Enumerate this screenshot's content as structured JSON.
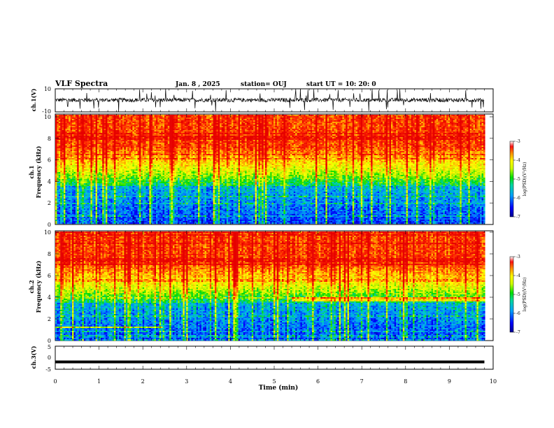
{
  "header": {
    "title": "VLF Spectra",
    "date": "Jan. 8 , 2025",
    "station": "station= OUJ",
    "start": "start UT = 10: 20: 0"
  },
  "chart_data": [
    {
      "type": "line",
      "name": "ch1-waveform",
      "ylabel": "ch.1(V)",
      "ylim": [
        -10,
        10
      ],
      "yticks": [
        "10",
        "-10"
      ],
      "xlim": [
        0,
        10
      ]
    },
    {
      "type": "heatmap",
      "name": "ch1-spectrogram",
      "ylabel": "ch.1\nFrequency (kHz)",
      "ylabel_lines": [
        "ch.1",
        "Frequency (kHz)"
      ],
      "ylim": [
        0,
        10
      ],
      "yticks": [
        "0",
        "2",
        "4",
        "6",
        "8",
        "10"
      ],
      "xlim": [
        0,
        10
      ],
      "data_end_min": 9.8,
      "colorbar": {
        "label": "log(PSD)(V²/Hz)",
        "ticks": [
          "-3",
          "-4",
          "-5",
          "-6",
          "-7"
        ],
        "range": [
          -7,
          -3
        ]
      }
    },
    {
      "type": "heatmap",
      "name": "ch2-spectrogram",
      "ylabel": "ch.2\nFrequency (kHz)",
      "ylabel_lines": [
        "ch.2",
        "Frequency (kHz)"
      ],
      "ylim": [
        0,
        10
      ],
      "yticks": [
        "0",
        "2",
        "4",
        "6",
        "8",
        "10"
      ],
      "xlim": [
        0,
        10
      ],
      "data_end_min": 9.8,
      "colorbar": {
        "label": "log(PSD)(V²/Hz)",
        "ticks": [
          "-3",
          "-4",
          "-5",
          "-6",
          "-7"
        ],
        "range": [
          -7,
          -3
        ]
      }
    },
    {
      "type": "line",
      "name": "ch3-signal",
      "ylabel": "ch.3(V)",
      "ylim": [
        -5,
        5
      ],
      "yticks": [
        "5",
        "0",
        "-5"
      ],
      "constant_value": -1.8,
      "xlim": [
        0,
        10
      ],
      "xlabel": "Time (min)",
      "xticks": [
        "0",
        "1",
        "2",
        "3",
        "4",
        "5",
        "6",
        "7",
        "8",
        "9",
        "10"
      ]
    }
  ],
  "colors": {
    "cmap": [
      "#00008b",
      "#0000ff",
      "#0080ff",
      "#00c0c0",
      "#00d000",
      "#c8e600",
      "#ffff00",
      "#ffa000",
      "#ff3000",
      "#e00000"
    ],
    "line": "#000000"
  }
}
